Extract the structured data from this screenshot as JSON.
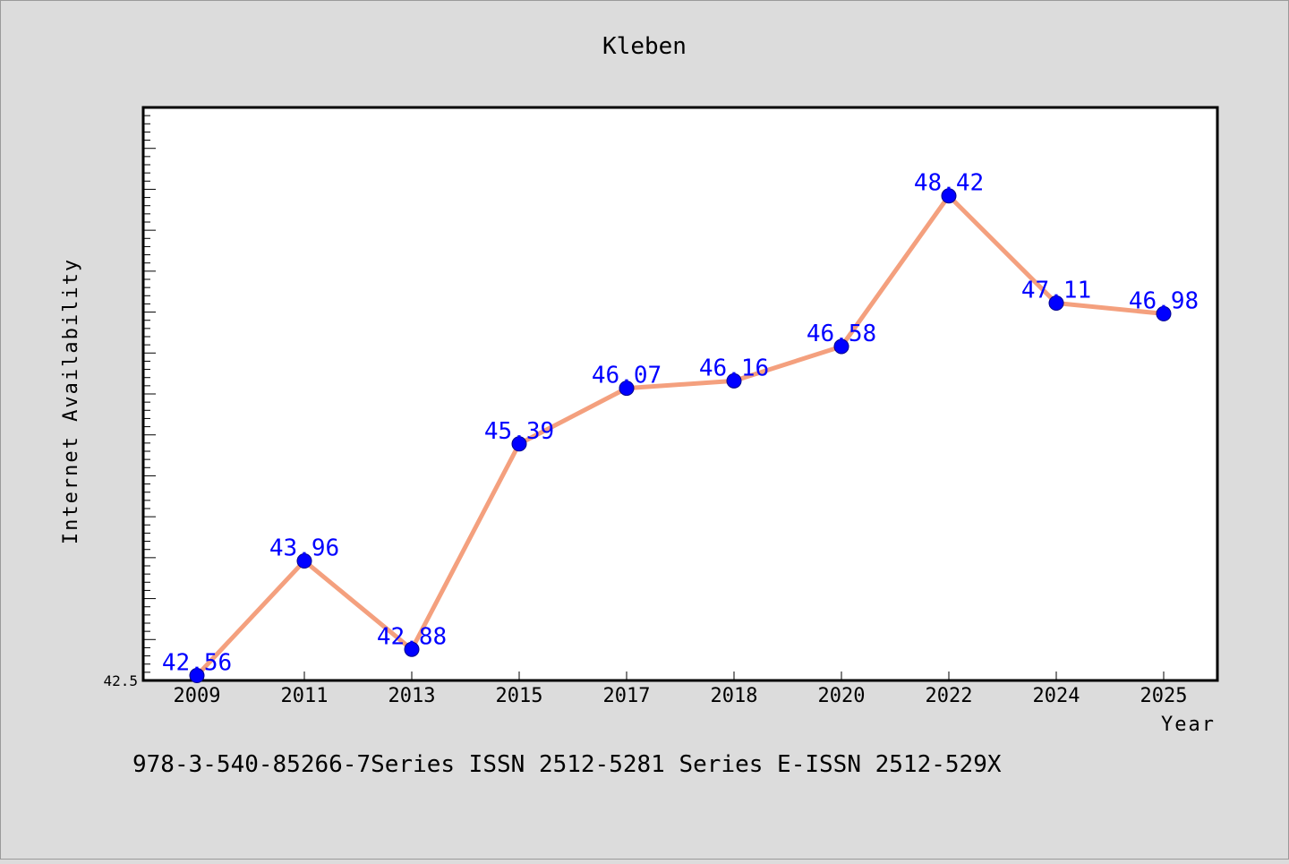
{
  "page": {
    "background": "#dcdcdc",
    "footer_text": "978-3-540-85266-7Series ISSN 2512-5281 Series E-ISSN 2512-529X"
  },
  "chart_data": {
    "type": "line",
    "title": "Kleben",
    "xlabel": "Year",
    "ylabel": "Internet Availability",
    "categories": [
      "2009",
      "2011",
      "2013",
      "2015",
      "2017",
      "2018",
      "2020",
      "2022",
      "2024",
      "2025"
    ],
    "series": [
      {
        "values": [
          42.56,
          43.96,
          42.88,
          45.39,
          46.07,
          46.16,
          46.58,
          48.42,
          47.11,
          46.98
        ],
        "labels": [
          "42.56",
          "43.96",
          "42.88",
          "45.39",
          "46.07",
          "46.16",
          "46.58",
          "48.42",
          "47.11",
          "46.98"
        ],
        "line_color": "#f4a07e",
        "marker_color": "#0000ff"
      }
    ],
    "ylim": [
      42.5,
      49.5
    ],
    "ytick_labels": [
      "42.5"
    ],
    "grid": false,
    "legend": "none"
  }
}
